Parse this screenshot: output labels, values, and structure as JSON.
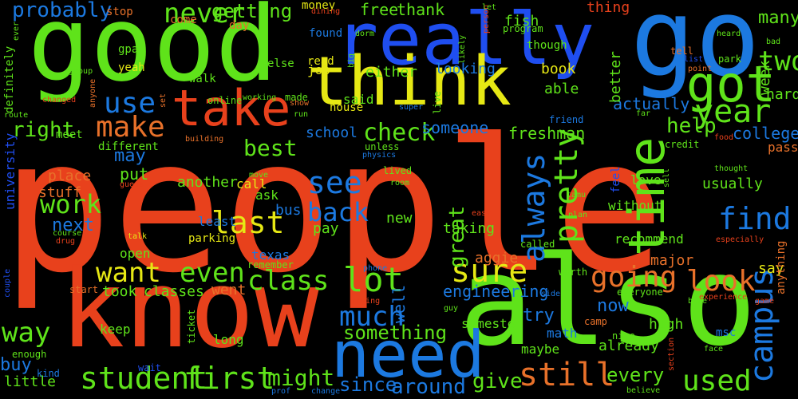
{
  "title": "",
  "background": "#000000",
  "palette": {
    "red": "#e8411c",
    "green": "#5fe31a",
    "blue": "#1f4ef0",
    "yellow": "#e6e814",
    "sky": "#1c79e0",
    "orange": "#e8712a"
  },
  "words": [
    {
      "text": "people",
      "color": "red"
    },
    {
      "text": "good",
      "color": "green"
    },
    {
      "text": "go",
      "color": "sky"
    },
    {
      "text": "know",
      "color": "red"
    },
    {
      "text": "also",
      "color": "green"
    },
    {
      "text": "really",
      "color": "blue"
    },
    {
      "text": "think",
      "color": "yellow"
    },
    {
      "text": "need",
      "color": "sky"
    },
    {
      "text": "take",
      "color": "red"
    },
    {
      "text": "got",
      "color": "green"
    },
    {
      "text": "time",
      "color": "green"
    },
    {
      "text": "student",
      "color": "green"
    },
    {
      "text": "first",
      "color": "green"
    },
    {
      "text": "want",
      "color": "yellow"
    },
    {
      "text": "even",
      "color": "green"
    },
    {
      "text": "class",
      "color": "green"
    },
    {
      "text": "lot",
      "color": "green"
    },
    {
      "text": "campus",
      "color": "sky"
    },
    {
      "text": "last",
      "color": "yellow"
    },
    {
      "text": "find",
      "color": "sky"
    },
    {
      "text": "year",
      "color": "green"
    },
    {
      "text": "pretty",
      "color": "green"
    },
    {
      "text": "going",
      "color": "orange"
    },
    {
      "text": "look",
      "color": "orange"
    },
    {
      "text": "sure",
      "color": "yellow"
    },
    {
      "text": "still",
      "color": "orange"
    },
    {
      "text": "use",
      "color": "sky"
    },
    {
      "text": "make",
      "color": "orange"
    },
    {
      "text": "never",
      "color": "green"
    },
    {
      "text": "see",
      "color": "sky"
    },
    {
      "text": "back",
      "color": "sky"
    },
    {
      "text": "way",
      "color": "green"
    },
    {
      "text": "much",
      "color": "sky"
    },
    {
      "text": "always",
      "color": "sky"
    },
    {
      "text": "check",
      "color": "green"
    },
    {
      "text": "used",
      "color": "green"
    },
    {
      "text": "work",
      "color": "green"
    },
    {
      "text": "best",
      "color": "green"
    },
    {
      "text": "help",
      "color": "green"
    },
    {
      "text": "probably",
      "color": "sky"
    },
    {
      "text": "two",
      "color": "green"
    },
    {
      "text": "great",
      "color": "green"
    },
    {
      "text": "right",
      "color": "green"
    },
    {
      "text": "getting",
      "color": "green"
    },
    {
      "text": "might",
      "color": "green"
    },
    {
      "text": "around",
      "color": "sky"
    },
    {
      "text": "give",
      "color": "green"
    },
    {
      "text": "something",
      "color": "green"
    },
    {
      "text": "since",
      "color": "sky"
    },
    {
      "text": "every",
      "color": "green"
    },
    {
      "text": "engineering",
      "color": "sky"
    },
    {
      "text": "buy",
      "color": "sky"
    },
    {
      "text": "try",
      "color": "sky"
    },
    {
      "text": "now",
      "color": "sky"
    },
    {
      "text": "someone",
      "color": "sky"
    },
    {
      "text": "actually",
      "color": "sky"
    },
    {
      "text": "college",
      "color": "sky"
    },
    {
      "text": "many",
      "color": "green"
    },
    {
      "text": "may",
      "color": "sky"
    },
    {
      "text": "next",
      "color": "sky"
    },
    {
      "text": "well",
      "color": "sky"
    },
    {
      "text": "freshman",
      "color": "green"
    },
    {
      "text": "school",
      "color": "sky"
    },
    {
      "text": "free",
      "color": "green"
    },
    {
      "text": "thank",
      "color": "green"
    },
    {
      "text": "put",
      "color": "green"
    },
    {
      "text": "place",
      "color": "orange"
    },
    {
      "text": "stuff",
      "color": "orange"
    },
    {
      "text": "another",
      "color": "green"
    },
    {
      "text": "classes",
      "color": "green"
    },
    {
      "text": "took",
      "color": "green"
    },
    {
      "text": "went",
      "color": "orange"
    },
    {
      "text": "pay",
      "color": "green"
    },
    {
      "text": "new",
      "color": "green"
    },
    {
      "text": "taking",
      "color": "green"
    },
    {
      "text": "recommend",
      "color": "green"
    },
    {
      "text": "major",
      "color": "orange"
    },
    {
      "text": "say",
      "color": "yellow"
    },
    {
      "text": "fish",
      "color": "green"
    },
    {
      "text": "thing",
      "color": "red"
    },
    {
      "text": "stop",
      "color": "orange"
    },
    {
      "text": "book",
      "color": "yellow"
    },
    {
      "text": "able",
      "color": "green"
    },
    {
      "text": "looking",
      "color": "sky"
    },
    {
      "text": "either",
      "color": "green"
    },
    {
      "text": "said",
      "color": "green"
    },
    {
      "text": "job",
      "color": "yellow"
    },
    {
      "text": "use2",
      "color": "sky"
    },
    {
      "text": "better",
      "color": "green"
    },
    {
      "text": "hard",
      "color": "green"
    },
    {
      "text": "week",
      "color": "green"
    },
    {
      "text": "pass",
      "color": "orange"
    },
    {
      "text": "high",
      "color": "green"
    },
    {
      "text": "open",
      "color": "green"
    },
    {
      "text": "texas",
      "color": "sky"
    },
    {
      "text": "aggie",
      "color": "orange"
    },
    {
      "text": "usually",
      "color": "green"
    },
    {
      "text": "love",
      "color": "green"
    },
    {
      "text": "without",
      "color": "green"
    },
    {
      "text": "least",
      "color": "sky"
    },
    {
      "text": "parking",
      "color": "yellow"
    },
    {
      "text": "long",
      "color": "green"
    },
    {
      "text": "math",
      "color": "sky"
    },
    {
      "text": "maybe",
      "color": "green"
    },
    {
      "text": "already",
      "color": "green"
    },
    {
      "text": "semester",
      "color": "green"
    },
    {
      "text": "keep",
      "color": "green"
    },
    {
      "text": "little",
      "color": "green"
    },
    {
      "text": "kind",
      "color": "sky"
    },
    {
      "text": "definitely",
      "color": "green"
    },
    {
      "text": "university",
      "color": "blue"
    },
    {
      "text": "bus",
      "color": "sky"
    },
    {
      "text": "call",
      "color": "yellow"
    },
    {
      "text": "ask",
      "color": "green"
    },
    {
      "text": "meet",
      "color": "green"
    },
    {
      "text": "different",
      "color": "green"
    },
    {
      "text": "walk",
      "color": "green"
    },
    {
      "text": "gpa",
      "color": "green"
    },
    {
      "text": "yeah",
      "color": "yellow"
    },
    {
      "text": "day",
      "color": "orange"
    },
    {
      "text": "come",
      "color": "orange"
    },
    {
      "text": "money",
      "color": "yellow"
    },
    {
      "text": "found",
      "color": "sky"
    },
    {
      "text": "read",
      "color": "yellow"
    },
    {
      "text": "else",
      "color": "green"
    },
    {
      "text": "made",
      "color": "green"
    },
    {
      "text": "house",
      "color": "yellow"
    },
    {
      "text": "live",
      "color": "green"
    },
    {
      "text": "program",
      "color": "green"
    },
    {
      "text": "though",
      "color": "green"
    },
    {
      "text": "tell",
      "color": "orange"
    },
    {
      "text": "park",
      "color": "green"
    },
    {
      "text": "friend",
      "color": "sky"
    },
    {
      "text": "credit",
      "color": "green"
    },
    {
      "text": "feel",
      "color": "blue"
    },
    {
      "text": "worth",
      "color": "green"
    },
    {
      "text": "nice",
      "color": "green"
    },
    {
      "text": "camp",
      "color": "orange"
    },
    {
      "text": "msc",
      "color": "sky"
    },
    {
      "text": "anything",
      "color": "orange"
    },
    {
      "text": "everyone",
      "color": "green"
    },
    {
      "text": "unless",
      "color": "green"
    },
    {
      "text": "lived",
      "color": "green"
    },
    {
      "text": "called",
      "color": "green"
    },
    {
      "text": "remember",
      "color": "green"
    },
    {
      "text": "start",
      "color": "orange"
    },
    {
      "text": "enough",
      "color": "green"
    },
    {
      "text": "wait",
      "color": "blue"
    },
    {
      "text": "ticket",
      "color": "green"
    },
    {
      "text": "course",
      "color": "green"
    },
    {
      "text": "talk",
      "color": "yellow"
    },
    {
      "text": "easy",
      "color": "red"
    },
    {
      "text": "online",
      "color": "green"
    },
    {
      "text": "dorm",
      "color": "green"
    },
    {
      "text": "group",
      "color": "green"
    },
    {
      "text": "anyone",
      "color": "orange"
    },
    {
      "text": "route",
      "color": "green"
    },
    {
      "text": "changed",
      "color": "red"
    },
    {
      "text": "set",
      "color": "orange"
    },
    {
      "text": "building",
      "color": "orange"
    },
    {
      "text": "working",
      "color": "green"
    },
    {
      "text": "run",
      "color": "green"
    },
    {
      "text": "super",
      "color": "sky"
    },
    {
      "text": "physics",
      "color": "sky"
    },
    {
      "text": "room",
      "color": "green"
    },
    {
      "text": "tamu",
      "color": "green"
    },
    {
      "text": "plan",
      "color": "green"
    },
    {
      "text": "guess",
      "color": "red"
    },
    {
      "text": "move",
      "color": "green"
    },
    {
      "text": "drug",
      "color": "red"
    },
    {
      "text": "phone",
      "color": "sky"
    },
    {
      "text": "trying",
      "color": "red"
    },
    {
      "text": "guy",
      "color": "green"
    },
    {
      "text": "side",
      "color": "sky"
    },
    {
      "text": "bike",
      "color": "green"
    },
    {
      "text": "experience",
      "color": "red"
    },
    {
      "text": "game",
      "color": "red"
    },
    {
      "text": "face",
      "color": "green"
    },
    {
      "text": "section",
      "color": "red"
    },
    {
      "text": "change",
      "color": "sky"
    },
    {
      "text": "believe",
      "color": "green"
    },
    {
      "text": "prof",
      "color": "sky"
    },
    {
      "text": "couple",
      "color": "blue"
    },
    {
      "text": "ever",
      "color": "green"
    },
    {
      "text": "dining",
      "color": "red"
    },
    {
      "text": "big",
      "color": "green"
    },
    {
      "text": "likely",
      "color": "green"
    },
    {
      "text": "person",
      "color": "red"
    },
    {
      "text": "let",
      "color": "green"
    },
    {
      "text": "heard",
      "color": "green"
    },
    {
      "text": "bad",
      "color": "green"
    },
    {
      "text": "list",
      "color": "blue"
    },
    {
      "text": "point",
      "color": "orange"
    },
    {
      "text": "far",
      "color": "green"
    },
    {
      "text": "food",
      "color": "red"
    },
    {
      "text": "thought",
      "color": "green"
    },
    {
      "text": "especially",
      "color": "red"
    },
    {
      "text": "show",
      "color": "orange"
    },
    {
      "text": "sell",
      "color": "green"
    }
  ]
}
